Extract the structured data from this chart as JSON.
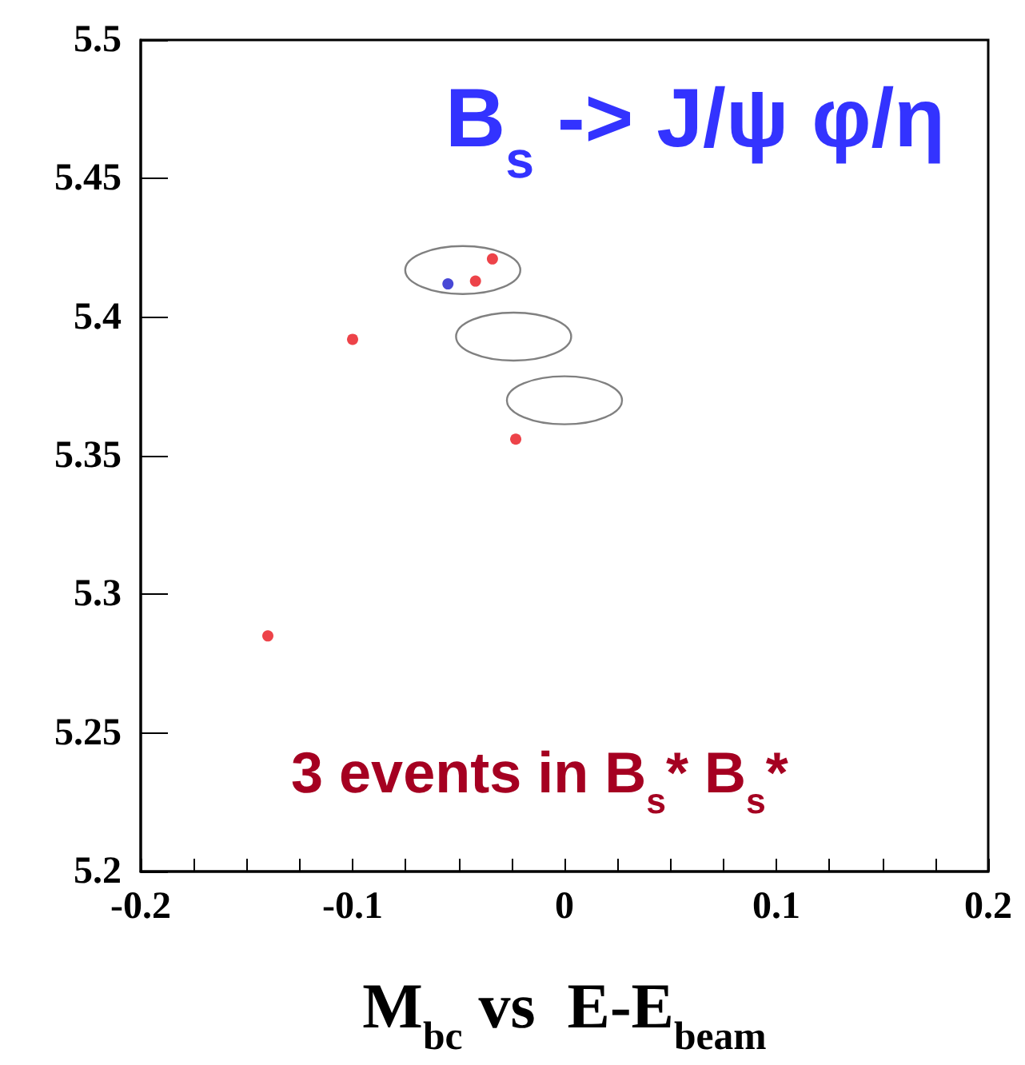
{
  "chart_data": {
    "type": "scatter",
    "title": "B$_{s}$ -> J/ψ φ/η",
    "xlabel": "M$_{bc}$ vs  E-E$_{beam}$",
    "annotations": [
      "3 events in B$_{s}$* B$_{s}$*"
    ],
    "series": [
      {
        "x": [
          -0.034,
          -0.042,
          -0.055,
          -0.1,
          -0.023,
          -0.14
        ],
        "values": [
          5.421,
          5.413,
          5.412,
          5.392,
          5.356,
          5.285
        ],
        "colors": [
          "#e8141c",
          "#e8141c",
          "#1a1acc",
          "#e8141c",
          "#e8141c",
          "#e8141c"
        ],
        "marker": "circle"
      }
    ],
    "xlim": [
      -0.2,
      0.2
    ],
    "xticks": [
      -0.2,
      {
        "value": -0.175,
        "label": null
      },
      {
        "value": -0.15,
        "label": null
      },
      {
        "value": -0.125,
        "label": null
      },
      -0.1,
      {
        "value": -0.075,
        "label": null
      },
      {
        "value": -0.05,
        "label": null
      },
      {
        "value": -0.025,
        "label": null
      },
      0,
      {
        "value": 0.025,
        "label": null
      },
      {
        "value": 0.05,
        "label": null
      },
      {
        "value": 0.075,
        "label": null
      },
      0.1,
      {
        "value": 0.125,
        "label": null
      },
      {
        "value": 0.15,
        "label": null
      },
      {
        "value": 0.175,
        "label": null
      },
      0.2
    ],
    "ylim": [
      5.2,
      5.5
    ],
    "yticks": [
      5.2,
      5.25,
      5.3,
      5.35,
      5.4,
      5.45,
      5.5
    ],
    "grid": false
  }
}
